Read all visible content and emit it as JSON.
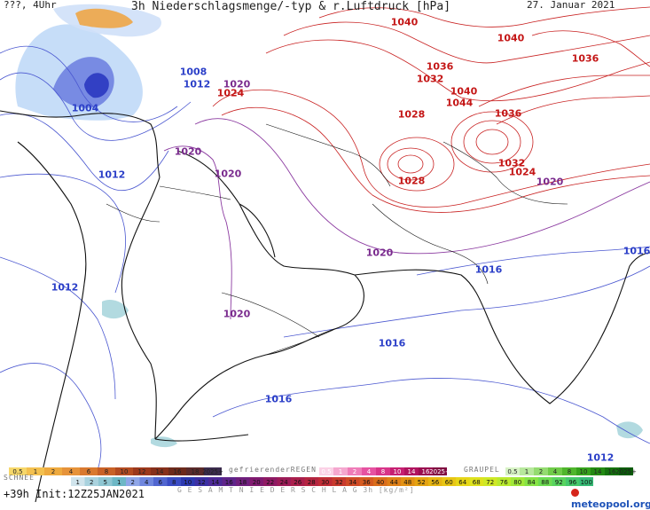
{
  "header": {
    "left": "???, 4Uhr",
    "title": "3h Niederschlagsmenge/-typ & r.Luftdruck [hPa]",
    "date": "27. Januar 2021"
  },
  "footer": {
    "run": "+39h Init:12Z25JAN2021",
    "snow_label": "SCHNEE",
    "freezing_rain_label": "gefrierenderREGEN",
    "graupel_label": "GRAUPEL",
    "total_label": "G E S A M T N I E D E R S C H L A G   3h   [kg/m²]",
    "logo": "meteopool.org"
  },
  "legends": {
    "snow_top": [
      "0.5",
      "1",
      "2",
      "4",
      "6",
      "8",
      "10",
      "12",
      "14",
      "16",
      "18",
      "2025+"
    ],
    "snow_bottom": [
      "1",
      "2",
      "5",
      "1",
      "2",
      "4",
      "6",
      "8",
      "10",
      "12",
      "14",
      "16",
      "18",
      "20",
      "22",
      "24",
      "26",
      "28",
      "30",
      "32",
      "34",
      "36",
      "40",
      "44",
      "48",
      "52",
      "56",
      "60",
      "64",
      "68",
      "72",
      "76",
      "80",
      "84",
      "88",
      "92",
      "96",
      "100"
    ],
    "freezing_rain": [
      "0.5",
      "1",
      "2",
      "4",
      "8",
      "10",
      "14",
      "16",
      "2025+"
    ],
    "graupel": [
      "0.5",
      "1",
      "2",
      "4",
      "8",
      "10",
      "14",
      "16",
      "2025+"
    ]
  },
  "isobar_labels": [
    {
      "text": "1040",
      "color": "red"
    },
    {
      "text": "1040",
      "color": "red"
    },
    {
      "text": "1036",
      "color": "red"
    },
    {
      "text": "1036",
      "color": "red"
    },
    {
      "text": "1032",
      "color": "red"
    },
    {
      "text": "1040",
      "color": "red"
    },
    {
      "text": "1044",
      "color": "red"
    },
    {
      "text": "1036",
      "color": "red"
    },
    {
      "text": "1028",
      "color": "red"
    },
    {
      "text": "1032",
      "color": "red"
    },
    {
      "text": "1024",
      "color": "red"
    },
    {
      "text": "1028",
      "color": "red"
    },
    {
      "text": "1024",
      "color": "red"
    },
    {
      "text": "1020",
      "color": "purple"
    },
    {
      "text": "1020",
      "color": "purple"
    },
    {
      "text": "1020",
      "color": "purple"
    },
    {
      "text": "1020",
      "color": "purple"
    },
    {
      "text": "1020",
      "color": "purple"
    },
    {
      "text": "1020",
      "color": "purple"
    },
    {
      "text": "1004",
      "color": "blue"
    },
    {
      "text": "1008",
      "color": "blue"
    },
    {
      "text": "1012",
      "color": "blue"
    },
    {
      "text": "1012",
      "color": "blue"
    },
    {
      "text": "1012",
      "color": "blue"
    },
    {
      "text": "1016",
      "color": "blue"
    },
    {
      "text": "1016",
      "color": "blue"
    },
    {
      "text": "1016",
      "color": "blue"
    },
    {
      "text": "1016",
      "color": "blue"
    },
    {
      "text": "1012",
      "color": "blue"
    }
  ],
  "colors": {
    "isobar_high": "#c41616",
    "isobar_mid": "#7a2b8e",
    "isobar_low": "#2b3fc8",
    "precip_light": "#9ec6f5",
    "precip_heavy": "#3543c9",
    "snow_orange": "#f0a23c"
  }
}
